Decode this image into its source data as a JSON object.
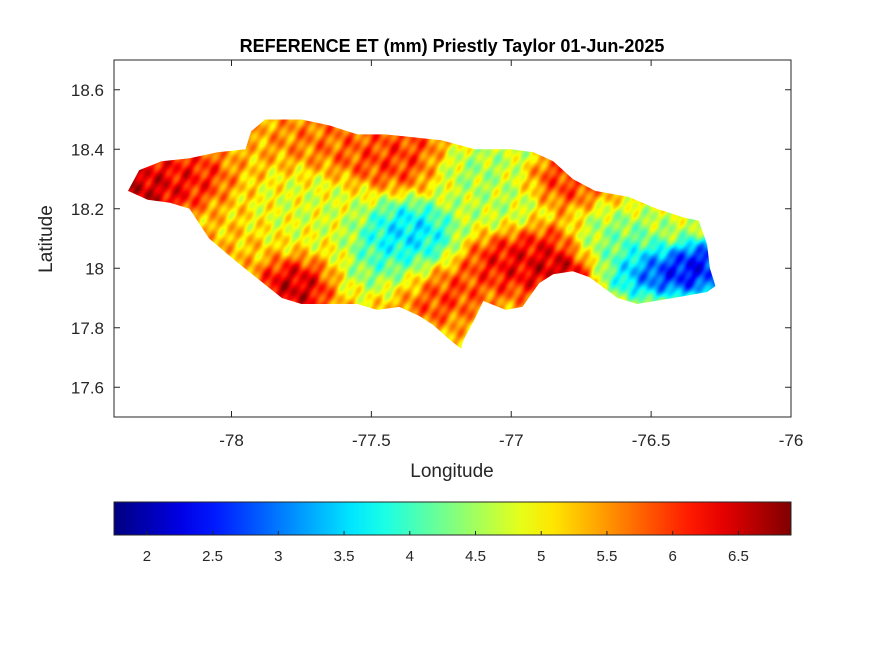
{
  "chart_data": {
    "type": "heatmap",
    "title": "REFERENCE ET (mm) Priestly Taylor 01-Jun-2025",
    "xlabel": "Longitude",
    "ylabel": "Latitude",
    "xlim": [
      -78.42,
      -76.0
    ],
    "ylim": [
      17.5,
      18.7
    ],
    "xticks": [
      -78,
      -77.5,
      -77,
      -76.5,
      -76
    ],
    "xtick_labels": [
      "-78",
      "-77.5",
      "-77",
      "-76.5",
      "-76"
    ],
    "yticks": [
      17.6,
      17.8,
      18,
      18.2,
      18.4,
      18.6
    ],
    "ytick_labels": [
      "17.6",
      "17.8",
      "18",
      "18.2",
      "18.4",
      "18.6"
    ],
    "colormap": "jet",
    "clim": [
      1.75,
      6.9
    ],
    "colorbar_ticks": [
      2,
      2.5,
      3,
      3.5,
      4,
      4.5,
      5,
      5.5,
      6,
      6.5
    ],
    "colorbar_tick_labels": [
      "2",
      "2.5",
      "3",
      "3.5",
      "4",
      "4.5",
      "5",
      "5.5",
      "6",
      "6.5"
    ],
    "colorbar_location": "south",
    "region_outline": [
      [
        -78.37,
        18.26
      ],
      [
        -78.33,
        18.33
      ],
      [
        -78.25,
        18.36
      ],
      [
        -78.15,
        18.37
      ],
      [
        -78.05,
        18.39
      ],
      [
        -77.95,
        18.4
      ],
      [
        -77.93,
        18.46
      ],
      [
        -77.88,
        18.5
      ],
      [
        -77.75,
        18.5
      ],
      [
        -77.65,
        18.48
      ],
      [
        -77.55,
        18.45
      ],
      [
        -77.45,
        18.45
      ],
      [
        -77.35,
        18.44
      ],
      [
        -77.25,
        18.43
      ],
      [
        -77.13,
        18.4
      ],
      [
        -77.0,
        18.4
      ],
      [
        -76.92,
        18.39
      ],
      [
        -76.85,
        18.36
      ],
      [
        -76.78,
        18.3
      ],
      [
        -76.7,
        18.26
      ],
      [
        -76.58,
        18.24
      ],
      [
        -76.48,
        18.2
      ],
      [
        -76.38,
        18.17
      ],
      [
        -76.33,
        18.16
      ],
      [
        -76.3,
        18.08
      ],
      [
        -76.29,
        18.0
      ],
      [
        -76.27,
        17.94
      ],
      [
        -76.3,
        17.92
      ],
      [
        -76.42,
        17.9
      ],
      [
        -76.55,
        17.88
      ],
      [
        -76.62,
        17.9
      ],
      [
        -76.72,
        17.97
      ],
      [
        -76.78,
        17.99
      ],
      [
        -76.85,
        17.98
      ],
      [
        -76.9,
        17.95
      ],
      [
        -76.96,
        17.87
      ],
      [
        -77.02,
        17.86
      ],
      [
        -77.1,
        17.89
      ],
      [
        -77.13,
        17.83
      ],
      [
        -77.17,
        17.76
      ],
      [
        -77.18,
        17.73
      ],
      [
        -77.22,
        17.76
      ],
      [
        -77.28,
        17.81
      ],
      [
        -77.33,
        17.84
      ],
      [
        -77.4,
        17.87
      ],
      [
        -77.48,
        17.86
      ],
      [
        -77.55,
        17.88
      ],
      [
        -77.62,
        17.88
      ],
      [
        -77.75,
        17.88
      ],
      [
        -77.82,
        17.9
      ],
      [
        -77.9,
        17.96
      ],
      [
        -77.98,
        18.02
      ],
      [
        -78.08,
        18.1
      ],
      [
        -78.15,
        18.2
      ],
      [
        -78.22,
        18.22
      ],
      [
        -78.3,
        18.23
      ],
      [
        -78.37,
        18.26
      ]
    ],
    "value_features": [
      {
        "lon": -78.32,
        "lat": 18.27,
        "value": 6.8,
        "sx": 0.08,
        "sy": 0.05
      },
      {
        "lon": -78.18,
        "lat": 18.31,
        "value": 6.3,
        "sx": 0.08,
        "sy": 0.05
      },
      {
        "lon": -77.78,
        "lat": 17.93,
        "value": 6.7,
        "sx": 0.06,
        "sy": 0.05
      },
      {
        "lon": -77.43,
        "lat": 18.38,
        "value": 6.1,
        "sx": 0.12,
        "sy": 0.06
      },
      {
        "lon": -77.62,
        "lat": 18.44,
        "value": 5.7,
        "sx": 0.12,
        "sy": 0.05
      },
      {
        "lon": -77.38,
        "lat": 18.12,
        "value": 3.2,
        "sx": 0.1,
        "sy": 0.06
      },
      {
        "lon": -77.42,
        "lat": 17.98,
        "value": 3.8,
        "sx": 0.08,
        "sy": 0.06
      },
      {
        "lon": -77.7,
        "lat": 18.2,
        "value": 4.7,
        "sx": 0.12,
        "sy": 0.07
      },
      {
        "lon": -77.15,
        "lat": 18.34,
        "value": 4.3,
        "sx": 0.08,
        "sy": 0.05
      },
      {
        "lon": -77.05,
        "lat": 18.22,
        "value": 4.5,
        "sx": 0.1,
        "sy": 0.06
      },
      {
        "lon": -77.32,
        "lat": 17.92,
        "value": 6.2,
        "sx": 0.1,
        "sy": 0.05
      },
      {
        "lon": -76.93,
        "lat": 18.03,
        "value": 6.5,
        "sx": 0.12,
        "sy": 0.06
      },
      {
        "lon": -76.82,
        "lat": 18.0,
        "value": 6.8,
        "sx": 0.06,
        "sy": 0.03
      },
      {
        "lon": -76.82,
        "lat": 18.3,
        "value": 6.1,
        "sx": 0.07,
        "sy": 0.05
      },
      {
        "lon": -76.67,
        "lat": 18.08,
        "value": 4.3,
        "sx": 0.07,
        "sy": 0.06
      },
      {
        "lon": -76.55,
        "lat": 18.03,
        "value": 3.6,
        "sx": 0.08,
        "sy": 0.07
      },
      {
        "lon": -76.47,
        "lat": 17.99,
        "value": 1.9,
        "sx": 0.08,
        "sy": 0.04
      },
      {
        "lon": -76.34,
        "lat": 18.01,
        "value": 2.0,
        "sx": 0.06,
        "sy": 0.05
      },
      {
        "lon": -76.45,
        "lat": 18.14,
        "value": 4.6,
        "sx": 0.08,
        "sy": 0.04
      },
      {
        "lon": -77.0,
        "lat": 18.39,
        "value": 4.6,
        "sx": 0.06,
        "sy": 0.04
      }
    ],
    "background_value": 5.3
  }
}
